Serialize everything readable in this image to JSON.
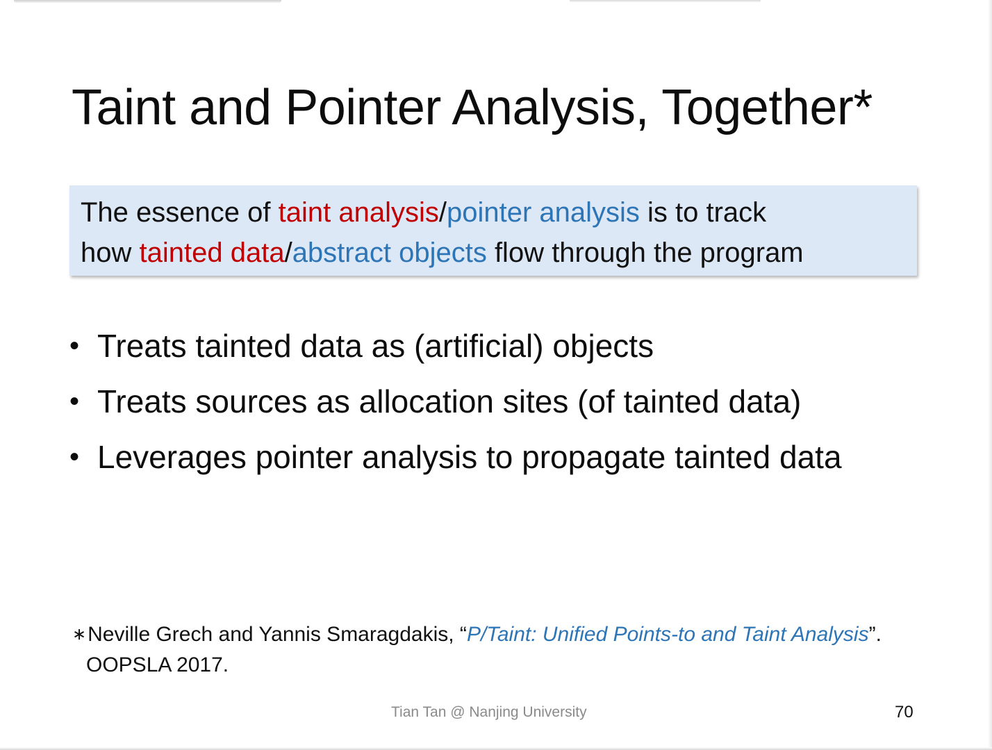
{
  "slide": {
    "title": "Taint and Pointer Analysis, Together*",
    "callout": {
      "line1": {
        "pre": "The essence of ",
        "red": "taint analysis",
        "sep": "/",
        "blue": "pointer analysis",
        "post": " is to track"
      },
      "line2": {
        "pre": "how ",
        "red": "tainted data",
        "sep": "/",
        "blue": "abstract objects",
        "post": " flow through the program"
      }
    },
    "bullets": [
      "Treats tainted data as (artificial) objects",
      "Treats sources as allocation sites (of tainted data)",
      "Leverages pointer analysis to propagate tainted data"
    ],
    "bullet_symbol": "•",
    "footnote": {
      "star": "∗",
      "authors": "Neville Grech and Yannis Smaragdakis, “",
      "paper_title": "P/Taint: Unified Points-to and Taint Analysis",
      "close": "”.",
      "venue": "OOPSLA 2017."
    },
    "footer": "Tian Tan @ Nanjing University",
    "page_number": "70"
  },
  "colors": {
    "red": "#c00000",
    "blue": "#2e75b6",
    "callout_bg": "#dde8f6",
    "footer_gray": "#8a8a8a"
  }
}
